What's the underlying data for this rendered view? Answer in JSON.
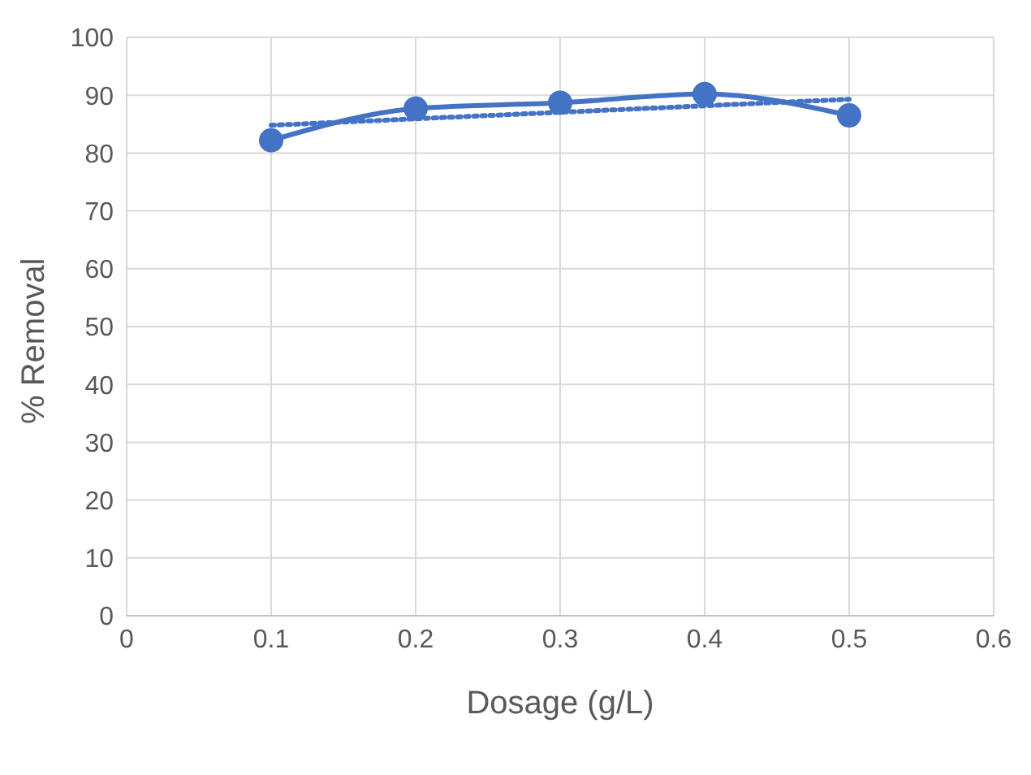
{
  "chart_data": {
    "type": "line",
    "xlabel": "Dosage (g/L)",
    "ylabel": "% Removal",
    "x": [
      0.1,
      0.2,
      0.3,
      0.4,
      0.5
    ],
    "series": [
      {
        "color": "#4472c4",
        "values": [
          82.2,
          87.7,
          88.7,
          90.2,
          86.5
        ],
        "marker": "circle",
        "line_style": "solid"
      },
      {
        "type": "line",
        "color": "#4472c4",
        "x": [
          0.1,
          0.5
        ],
        "values": [
          84.8,
          89.3
        ],
        "marker": "none",
        "line_style": "dotted"
      }
    ],
    "xlim": [
      0,
      0.6
    ],
    "xticks": [
      0,
      0.1,
      0.2,
      0.3,
      0.4,
      0.5,
      0.6
    ],
    "ylim": [
      0,
      100
    ],
    "yticks": [
      0,
      10,
      20,
      30,
      40,
      50,
      60,
      70,
      80,
      90,
      100
    ],
    "grid": true,
    "legend": false
  }
}
